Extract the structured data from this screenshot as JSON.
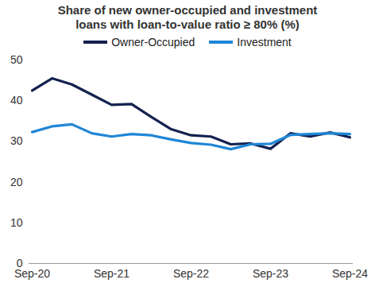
{
  "chart_data": {
    "type": "line",
    "title": "Share of new owner-occupied and investment loans with loan-to-value ratio ≥ 80% (%)",
    "categories": [
      "Sep-20",
      null,
      null,
      null,
      "Sep-21",
      null,
      null,
      null,
      "Sep-22",
      null,
      null,
      null,
      "Sep-23",
      null,
      null,
      null,
      "Sep-24"
    ],
    "series": [
      {
        "name": "Owner-Occupied",
        "color": "#14214f",
        "values": [
          42.5,
          45.5,
          44,
          41.5,
          39,
          39.2,
          36,
          33,
          31.5,
          31.2,
          29.3,
          29.5,
          28.2,
          32,
          31.2,
          32.2,
          31
        ]
      },
      {
        "name": "Investment",
        "color": "#1f86d6",
        "values": [
          32.3,
          33.7,
          34.2,
          32,
          31.2,
          31.8,
          31.5,
          30.5,
          29.6,
          29.2,
          28.1,
          29.3,
          29.4,
          31.6,
          31.8,
          32,
          31.8
        ]
      }
    ],
    "ylim": [
      0,
      50
    ],
    "yticks": [
      0,
      10,
      20,
      30,
      40,
      50
    ],
    "grid": false,
    "legend": "top"
  }
}
